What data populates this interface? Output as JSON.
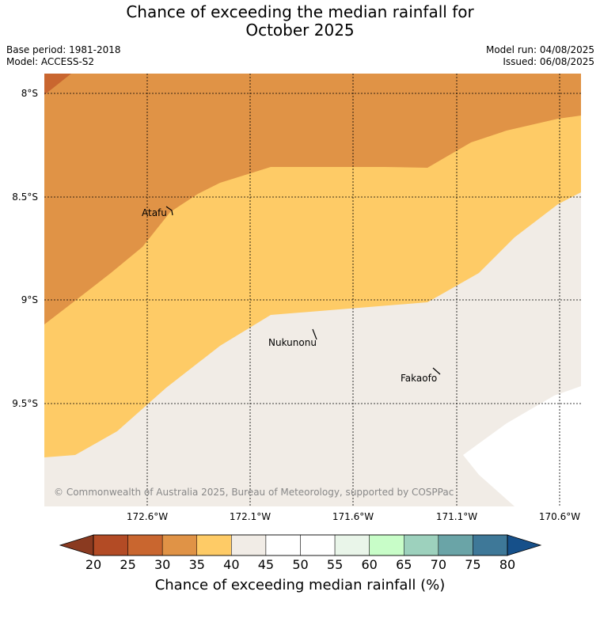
{
  "title_line1": "Chance of exceeding the median rainfall for",
  "title_line2": "October 2025",
  "meta": {
    "base_period": "Base period: 1981-2018",
    "model": "Model: ACCESS-S2",
    "model_run": "Model run: 04/08/2025",
    "issued": "Issued: 06/08/2025"
  },
  "lat_labels": [
    "8°S",
    "8.5°S",
    "9°S",
    "9.5°S"
  ],
  "lon_labels": [
    "172.6°W",
    "172.1°W",
    "171.6°W",
    "171.1°W",
    "170.6°W"
  ],
  "places": {
    "atafu": "Atafu",
    "nukunonu": "Nukunonu",
    "fakaofo": "Fakaofo"
  },
  "copyright": "© Commonwealth of Australia 2025, Bureau of Meteorology, supported by COSPPac",
  "colorbar": {
    "label": "Chance of exceeding median rainfall (%)",
    "ticks": [
      "20",
      "25",
      "30",
      "35",
      "40",
      "45",
      "50",
      "55",
      "60",
      "65",
      "70",
      "75",
      "80"
    ],
    "colors": [
      "#b34b25",
      "#c9662f",
      "#e09346",
      "#fecb66",
      "#f1ece6",
      "#ffffff",
      "#ffffff",
      "#e9f5e9",
      "#c8fdc8",
      "#9dd1bd",
      "#6aa4a7",
      "#3e7898"
    ],
    "under_color": "#8a3a20",
    "over_color": "#16508a"
  },
  "map_colors": {
    "band_30_35": "#e09346",
    "band_35_40": "#fecb66",
    "band_40_45": "#f1ece6",
    "band_25_30": "#c9662f",
    "land_white": "#ffffff"
  }
}
